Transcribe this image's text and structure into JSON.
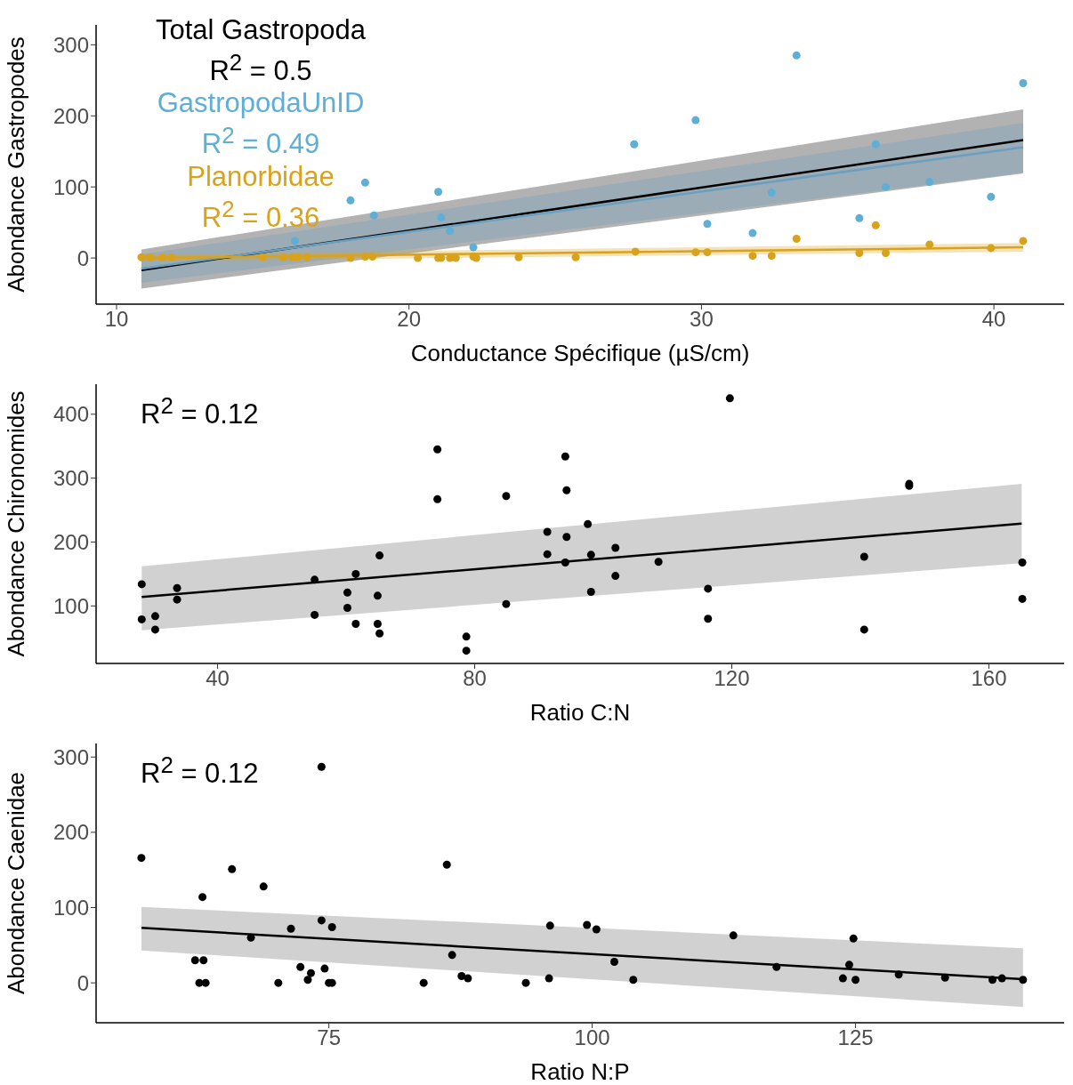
{
  "chart_data": [
    {
      "type": "scatter",
      "xlabel": "Conductance Spécifique (µS/cm)",
      "ylabel": "Abondance Gastropodes",
      "xlim": [
        9.3,
        42.4
      ],
      "ylim": [
        -65,
        328
      ],
      "xticks": [
        10,
        20,
        30,
        40
      ],
      "yticks": [
        0,
        100,
        200,
        300
      ],
      "marker": "circle",
      "annotations": [
        "R$^{2}$ = 0.5",
        "R$^{2}$ = 0.49",
        "R$^{2}$ = 0.36"
      ],
      "series": [
        {
          "name": "Total Gastropoda",
          "type": "line",
          "marker": "none",
          "color": "#000000",
          "x": [
            10.85,
            41.0
          ],
          "values": [
            -17,
            166
          ],
          "lower": [
            -43,
            119
          ],
          "upper": [
            12,
            209
          ]
        },
        {
          "name": "GastropodaUnID",
          "color": "#5eaed6",
          "x": [
            16.1,
            18.0,
            18.5,
            18.8,
            21.0,
            21.1,
            21.4,
            22.2,
            27.7,
            29.8,
            30.2,
            31.75,
            32.4,
            33.25,
            35.4,
            35.96,
            36.3,
            37.8,
            39.9,
            41.0
          ],
          "values": [
            24,
            81,
            106,
            60,
            93,
            57,
            38,
            15,
            160,
            194,
            48,
            35,
            92,
            285,
            56,
            160,
            100,
            107,
            86,
            246
          ]
        },
        {
          "type": "line",
          "marker": "none",
          "color": "#6a9fc0",
          "x": [
            10.85,
            41.0
          ],
          "values": [
            -15,
            156
          ],
          "lower": [
            -35,
            120
          ],
          "upper": [
            5,
            190
          ]
        },
        {
          "name": "Planorbidae",
          "color": "#d9a21b",
          "x": [
            10.85,
            11.14,
            11.57,
            11.87,
            15.0,
            15.7,
            16.0,
            16.2,
            16.5,
            18.0,
            18.5,
            18.75,
            20.3,
            21.0,
            21.1,
            21.4,
            21.6,
            22.2,
            22.3,
            23.75,
            25.7,
            27.74,
            29.8,
            30.2,
            31.75,
            32.4,
            33.25,
            35.4,
            35.96,
            36.3,
            37.8,
            39.9,
            41.0
          ],
          "values": [
            1,
            1,
            1,
            1,
            1,
            1,
            1,
            1,
            1,
            0,
            2,
            2,
            0,
            0,
            0,
            0,
            0,
            2,
            0,
            1,
            1,
            9,
            8,
            8,
            3,
            3,
            27,
            7,
            46,
            7,
            19,
            14,
            24
          ]
        },
        {
          "type": "line",
          "marker": "none",
          "color": "#d9a21b",
          "x": [
            10.85,
            41.0
          ],
          "values": [
            0,
            15
          ],
          "lower": [
            -5,
            9
          ],
          "upper": [
            5,
            21
          ]
        }
      ]
    },
    {
      "type": "scatter",
      "xlabel": "Ratio C:N",
      "ylabel": "Abondance Chironomides",
      "xlim": [
        21.1,
        171.7
      ],
      "ylim": [
        10,
        447
      ],
      "xticks": [
        40,
        80,
        120,
        160
      ],
      "yticks": [
        100,
        200,
        300,
        400
      ],
      "marker": "circle",
      "annotations": [
        "R$^{2}$ = 0.12"
      ],
      "series": [
        {
          "color": "#000000",
          "x": [
            28.2,
            28.2,
            30.3,
            30.3,
            33.7,
            33.7,
            55.1,
            55.1,
            60.2,
            60.2,
            61.5,
            61.5,
            64.9,
            65.2,
            64.9,
            65.2,
            74.2,
            74.2,
            78.7,
            78.7,
            84.9,
            84.9,
            91.3,
            91.3,
            94.1,
            94.3,
            94.3,
            94.1,
            97.6,
            98.1,
            98.1,
            101.9,
            101.9,
            108.6,
            116.3,
            116.3,
            119.7,
            140.6,
            140.6,
            147.6,
            147.6,
            165.2,
            165.2
          ],
          "values": [
            134,
            79,
            84,
            63,
            128,
            110,
            141,
            86,
            121,
            97,
            150,
            72,
            116,
            179,
            72,
            57,
            345,
            267,
            52,
            30,
            272,
            103,
            216,
            181,
            334,
            281,
            208,
            168,
            228,
            180,
            122,
            191,
            147,
            169,
            127,
            80,
            425,
            177,
            63,
            291,
            288,
            168,
            111
          ]
        },
        {
          "type": "line",
          "marker": "none",
          "color": "#000000",
          "x": [
            28.2,
            165.1
          ],
          "values": [
            114,
            229
          ],
          "lower": [
            62,
            167
          ],
          "upper": [
            162,
            291
          ]
        }
      ]
    },
    {
      "type": "scatter",
      "xlabel": "Ratio N:P",
      "ylabel": "Abondance Caenidae",
      "xlim": [
        52.9,
        144.8
      ],
      "ylim": [
        -53,
        318
      ],
      "xticks": [
        75,
        100,
        125
      ],
      "yticks": [
        0,
        100,
        200,
        300
      ],
      "marker": "circle",
      "annotations": [
        "R$^{2}$ = 0.12"
      ],
      "series": [
        {
          "color": "#000000",
          "x": [
            57.2,
            65.8,
            68.8,
            63.0,
            74.3,
            74.3,
            71.4,
            75.3,
            67.6,
            62.3,
            63.1,
            62.7,
            63.3,
            70.2,
            72.3,
            73.3,
            73.0,
            74.6,
            75.0,
            75.3,
            84.0,
            86.2,
            86.7,
            87.6,
            88.2,
            93.7,
            96.0,
            95.9,
            99.5,
            100.4,
            102.1,
            103.9,
            113.4,
            117.5,
            123.8,
            124.4,
            124.8,
            125.0,
            129.1,
            133.5,
            138.0,
            138.9,
            140.9
          ],
          "values": [
            166,
            151,
            128,
            114,
            287,
            83,
            72,
            74,
            60,
            30,
            30,
            0,
            0,
            0,
            21,
            13,
            4,
            19,
            0,
            0,
            0,
            157,
            37,
            9,
            6,
            0,
            76,
            6,
            77,
            71,
            28,
            4,
            63,
            21,
            6,
            24,
            59,
            4,
            11,
            7,
            4,
            6,
            4
          ]
        },
        {
          "type": "line",
          "marker": "none",
          "color": "#000000",
          "x": [
            57.2,
            140.9
          ],
          "values": [
            73,
            5
          ],
          "lower": [
            43,
            -32
          ],
          "upper": [
            101,
            46
          ]
        }
      ]
    }
  ]
}
